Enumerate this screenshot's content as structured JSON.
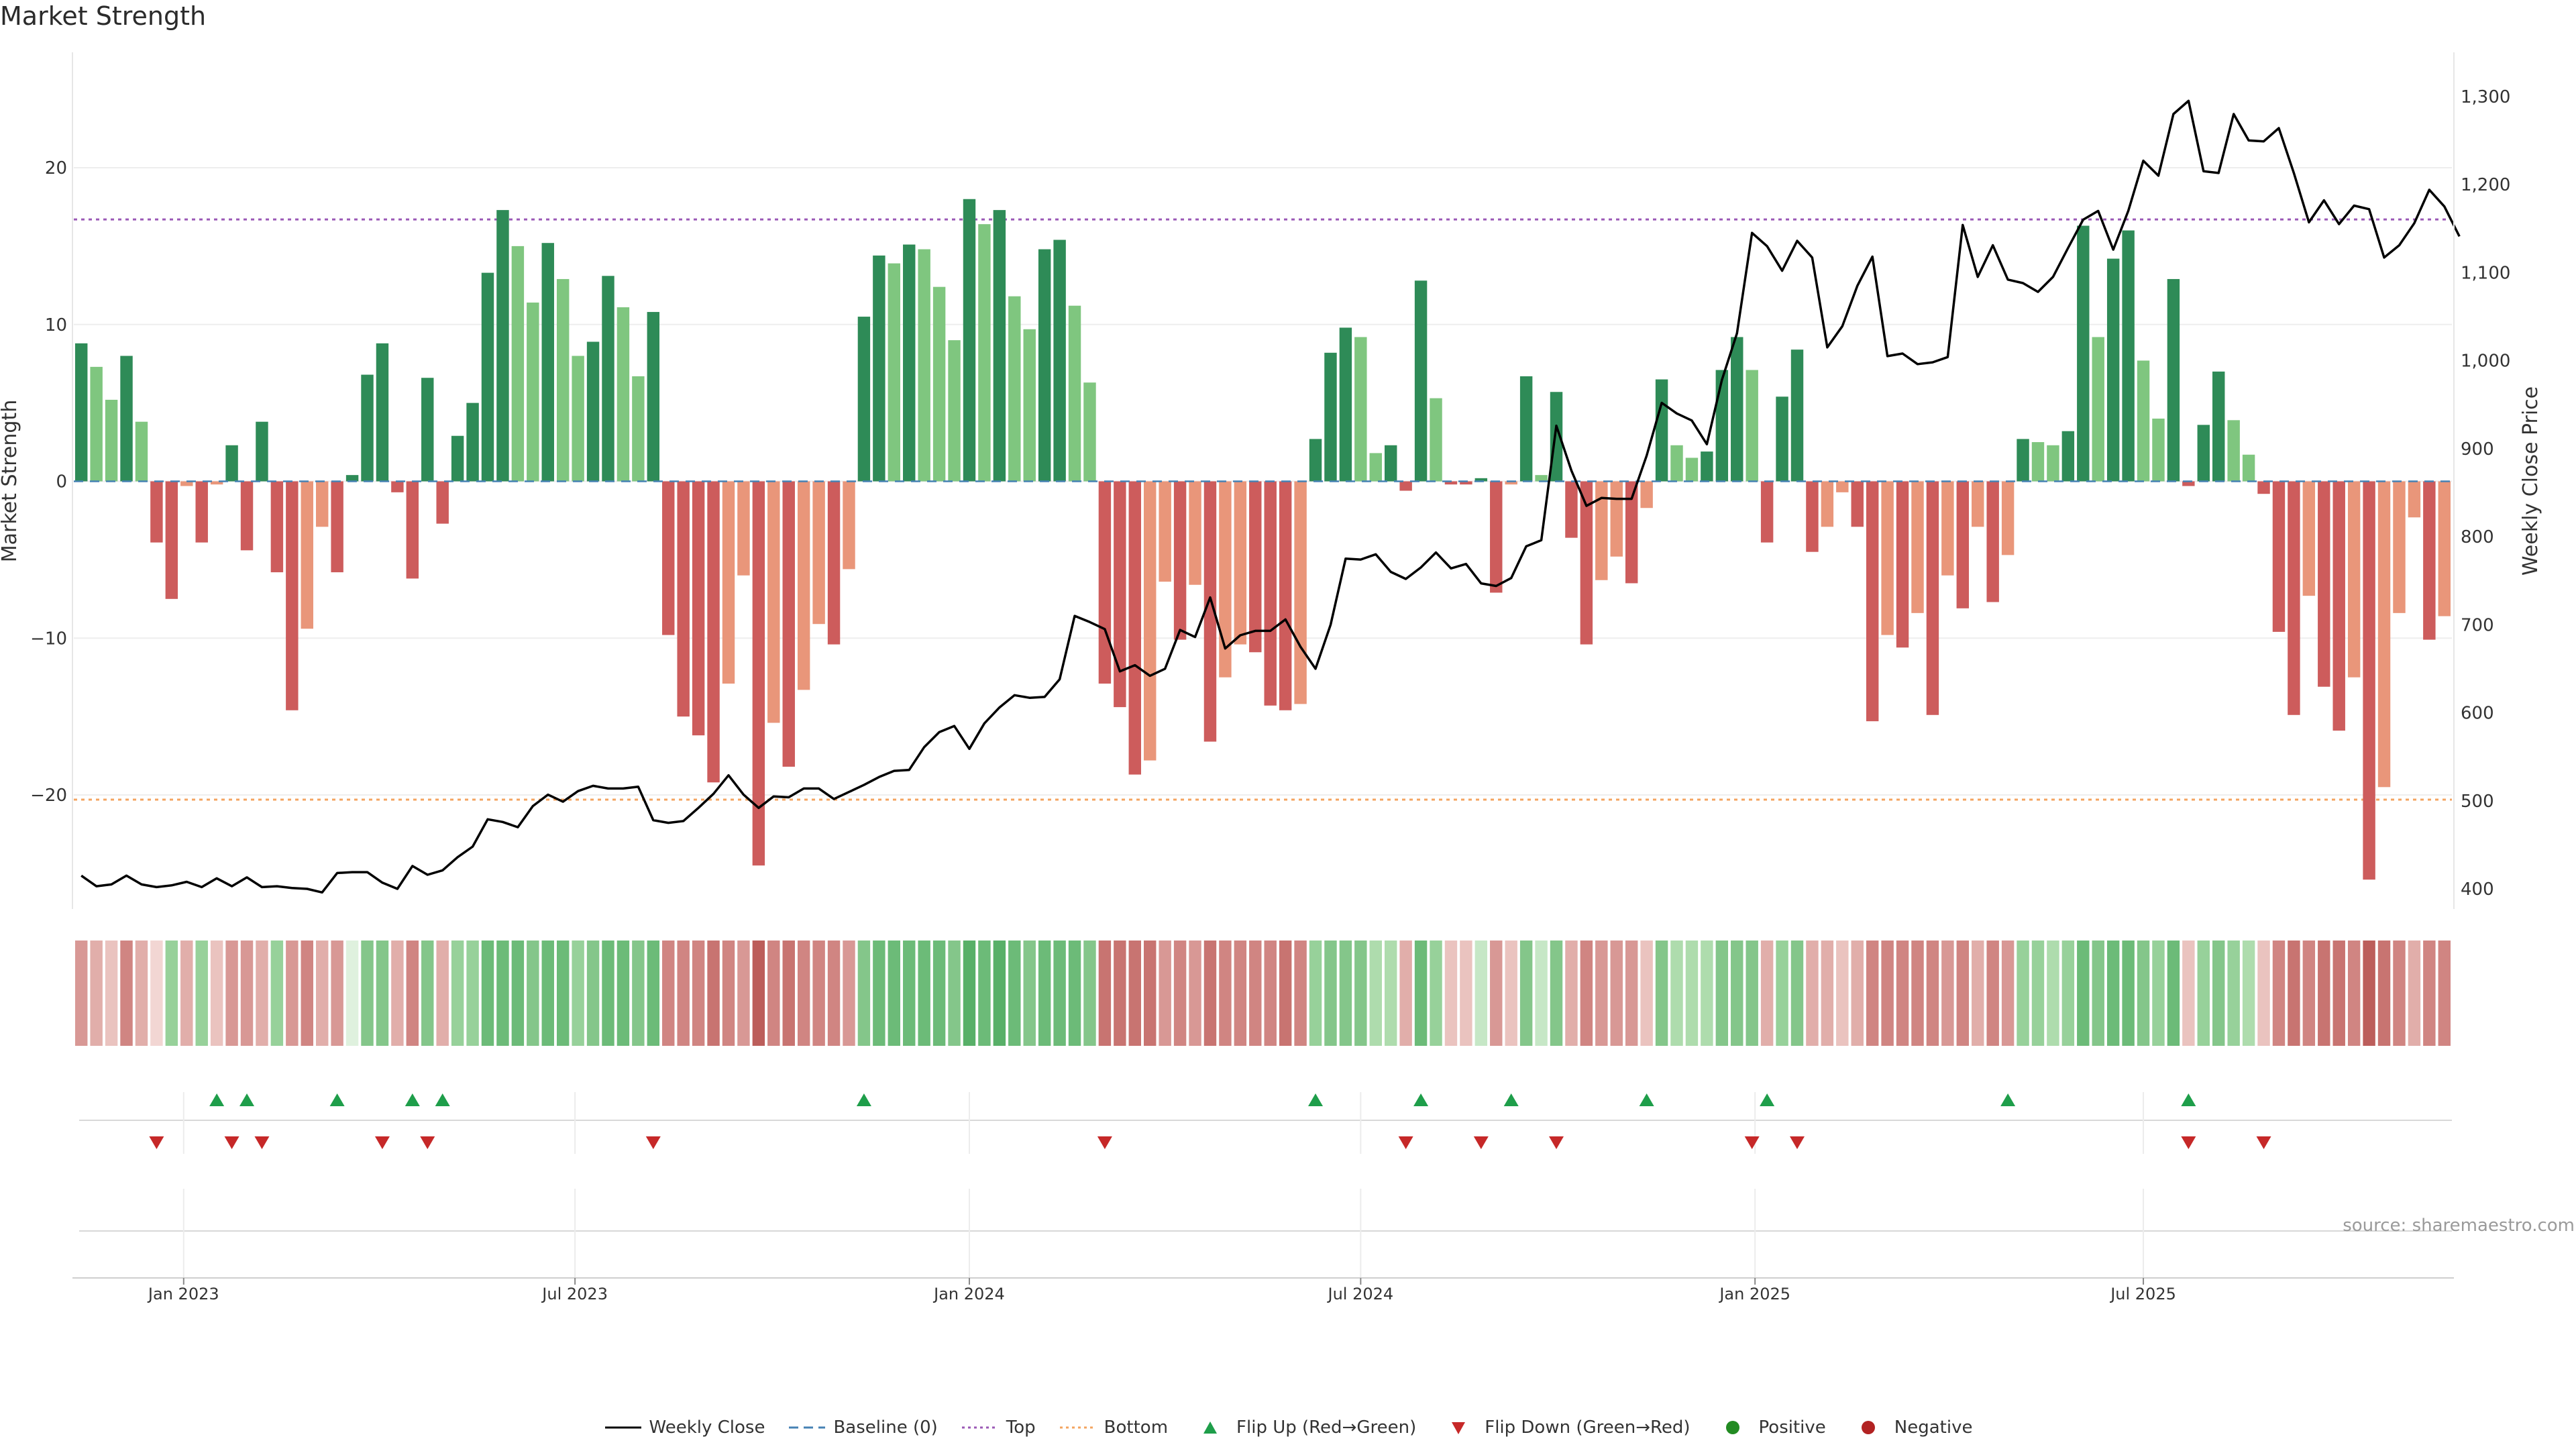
{
  "title": "Market Strength",
  "source": "source: sharemaestro.com",
  "legend": [
    {
      "label": "Weekly Close",
      "icon": "line-solid"
    },
    {
      "label": "Baseline (0)",
      "icon": "line-dashed"
    },
    {
      "label": "Top",
      "icon": "line-dotted"
    },
    {
      "label": "Bottom",
      "icon": "line-dotted"
    },
    {
      "label": "Flip Up (Red→Green)",
      "icon": "triangle-up"
    },
    {
      "label": "Flip Down (Green→Red)",
      "icon": "triangle-down"
    },
    {
      "label": "Positive",
      "icon": "dot"
    },
    {
      "label": "Negative",
      "icon": "dot"
    }
  ],
  "colors": {
    "pos_strong": "#2e8b57",
    "pos_light": "#7fc67f",
    "neg_strong": "#cd5c5c",
    "neg_light": "#e9967a",
    "price": "#000000",
    "baseline": "#4682b4",
    "top": "#9b59b6",
    "bottom": "#f4a460",
    "flip_up": "#1e9e4a",
    "flip_down": "#c62828",
    "positive_dot": "#228b22",
    "negative_dot": "#b22222"
  },
  "chart_data": {
    "type": "bar",
    "x_ticks": [
      "Jan 2023",
      "Jul 2023",
      "Jan 2024",
      "Jul 2024",
      "Jan 2025",
      "Jul 2025"
    ],
    "y_left": {
      "label": "Market Strength",
      "ticks": [
        20,
        10,
        0,
        -10,
        -20
      ],
      "range": [
        -27.5,
        27.5
      ]
    },
    "y_right": {
      "label": "Weekly Close Price",
      "ticks": [
        "1,300",
        "1,200",
        "1,100",
        "1,000",
        "900",
        "800",
        "700",
        "600",
        "500",
        "400"
      ],
      "range": [
        370,
        1340
      ]
    },
    "top_threshold": 16.7,
    "bottom_threshold": -20.3,
    "series": [
      {
        "name": "Market Strength",
        "values": [
          8.8,
          7.3,
          5.2,
          8.0,
          3.8,
          -3.9,
          -7.5,
          -0.3,
          -3.9,
          -0.2,
          2.3,
          -4.4,
          3.8,
          -5.8,
          -14.6,
          -9.4,
          -2.9,
          -5.8,
          0.4,
          6.8,
          8.8,
          -0.7,
          -6.2,
          6.6,
          -2.7,
          2.9,
          5.0,
          13.3,
          17.3,
          15.0,
          11.4,
          15.2,
          12.9,
          8.0,
          8.9,
          13.1,
          11.1,
          6.7,
          10.8,
          -9.8,
          -15.0,
          -16.2,
          -19.2,
          -12.9,
          -6.0,
          -24.5,
          -15.4,
          -18.2,
          -13.3,
          -9.1,
          -10.4,
          -5.6,
          10.5,
          14.4,
          13.9,
          15.1,
          14.8,
          12.4,
          9.0,
          18.0,
          16.4,
          17.3,
          11.8,
          9.7,
          14.8,
          15.4,
          11.2,
          6.3,
          -12.9,
          -14.4,
          -18.7,
          -17.8,
          -6.4,
          -10.1,
          -6.6,
          -16.6,
          -12.5,
          -10.4,
          -10.9,
          -14.3,
          -14.6,
          -14.2,
          2.7,
          8.2,
          9.8,
          9.2,
          1.8,
          2.3,
          -0.6,
          12.8,
          5.3,
          -0.2,
          -0.2,
          0.2,
          -7.1,
          -0.2,
          6.7,
          0.4,
          5.7,
          -3.6,
          -10.4,
          -6.3,
          -4.8,
          -6.5,
          -1.7,
          6.5,
          2.3,
          1.5,
          1.9,
          7.1,
          9.2,
          7.1,
          -3.9,
          5.4,
          8.4,
          -4.5,
          -2.9,
          -0.7,
          -2.9,
          -15.3,
          -9.8,
          -10.6,
          -8.4,
          -14.9,
          -6.0,
          -8.1,
          -2.9,
          -7.7,
          -4.7,
          2.7,
          2.5,
          2.3,
          3.2,
          16.3,
          9.2,
          14.2,
          16.0,
          7.7,
          4.0,
          12.9,
          -0.3,
          3.6,
          7.0,
          3.9,
          1.7,
          -0.8,
          -9.6,
          -14.9,
          -7.3,
          -13.1,
          -15.9,
          -12.5,
          -25.4,
          -19.5,
          -8.4,
          -2.3,
          -10.1,
          -8.6
        ]
      },
      {
        "name": "Weekly Close",
        "values": [
          415,
          403,
          405,
          415,
          405,
          402,
          404,
          408,
          402,
          412,
          403,
          413,
          402,
          403,
          401,
          400,
          396,
          418,
          419,
          419,
          407,
          400,
          426,
          416,
          421,
          436,
          448,
          479,
          476,
          470,
          494,
          507,
          499,
          511,
          517,
          514,
          514,
          516,
          478,
          475,
          477,
          492,
          508,
          529,
          507,
          492,
          505,
          504,
          514,
          514,
          502,
          510,
          518,
          527,
          534,
          535,
          561,
          578,
          585,
          559,
          588,
          606,
          620,
          617,
          618,
          638,
          710,
          703,
          695,
          647,
          654,
          642,
          650,
          694,
          686,
          731,
          673,
          688,
          693,
          693,
          706,
          675,
          650,
          700,
          775,
          774,
          780,
          760,
          752,
          765,
          782,
          764,
          769,
          747,
          744,
          753,
          789,
          796,
          926,
          875,
          835,
          844,
          843,
          843,
          892,
          952,
          940,
          932,
          905,
          978,
          1031,
          1145,
          1130,
          1102,
          1136,
          1117,
          1015,
          1039,
          1085,
          1118,
          1005,
          1008,
          996,
          998,
          1004,
          1154,
          1095,
          1131,
          1092,
          1088,
          1078,
          1095,
          1128,
          1160,
          1170,
          1126,
          1170,
          1227,
          1210,
          1280,
          1295,
          1215,
          1213,
          1280,
          1250,
          1249,
          1264,
          1213,
          1157,
          1182,
          1155,
          1176,
          1172,
          1117,
          1131,
          1156,
          1194,
          1175,
          1141
        ]
      }
    ],
    "heat_row": [
      -4,
      -3,
      -2,
      -5,
      -3,
      -1,
      4,
      -3,
      4,
      -2,
      -4,
      -4,
      -3,
      4,
      -4,
      -5,
      -3,
      -4,
      1,
      5,
      5,
      -3,
      -5,
      5,
      -3,
      4,
      4,
      6,
      6,
      6,
      5,
      6,
      6,
      4,
      5,
      6,
      6,
      5,
      6,
      -5,
      -5,
      -5,
      -6,
      -5,
      -4,
      -7,
      -5,
      -6,
      -5,
      -5,
      -5,
      -4,
      5,
      6,
      6,
      6,
      6,
      6,
      5,
      7,
      6,
      7,
      6,
      5,
      6,
      6,
      6,
      5,
      -6,
      -6,
      -6,
      -6,
      -4,
      -5,
      -4,
      -6,
      -5,
      -5,
      -5,
      -5,
      -6,
      -5,
      4,
      5,
      5,
      5,
      3,
      3,
      -3,
      6,
      4,
      -2,
      -2,
      2,
      -4,
      -2,
      5,
      2,
      5,
      -3,
      -5,
      -4,
      -4,
      -4,
      -2,
      5,
      3,
      3,
      3,
      5,
      5,
      5,
      -3,
      4,
      5,
      -3,
      -3,
      -2,
      -3,
      -5,
      -5,
      -5,
      -5,
      -5,
      -4,
      -5,
      -3,
      -5,
      -4,
      4,
      4,
      3,
      4,
      6,
      5,
      6,
      6,
      5,
      4,
      6,
      -2,
      4,
      5,
      4,
      3,
      -2,
      -5,
      -6,
      -5,
      -6,
      -6,
      -5,
      -7,
      -6,
      -5,
      -3,
      -5,
      -5
    ],
    "flip_up_weeks": [
      9,
      11,
      17,
      22,
      24,
      52,
      82,
      89,
      95,
      104,
      112,
      128,
      140
    ],
    "flip_down_weeks": [
      5,
      10,
      12,
      20,
      23,
      38,
      68,
      88,
      93,
      98,
      111,
      114,
      140,
      145
    ]
  }
}
